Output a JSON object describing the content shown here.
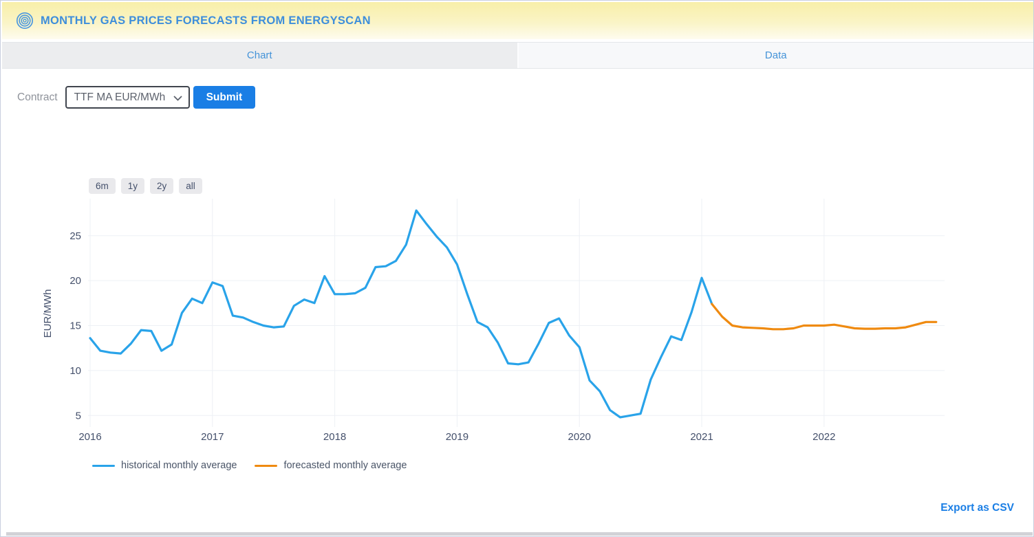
{
  "header": {
    "title": "MONTHLY GAS PRICES FORECASTS FROM ENERGYSCAN"
  },
  "tabs": [
    {
      "label": "Chart",
      "active": true
    },
    {
      "label": "Data",
      "active": false
    }
  ],
  "controls": {
    "contract_label": "Contract",
    "contract_value": "TTF MA EUR/MWh",
    "submit_label": "Submit"
  },
  "range_buttons": [
    "6m",
    "1y",
    "2y",
    "all"
  ],
  "chart_data": {
    "type": "line",
    "ylabel": "EUR/MWh",
    "y_ticks": [
      5,
      10,
      15,
      20,
      25
    ],
    "x_ticks": [
      "2016",
      "2017",
      "2018",
      "2019",
      "2020",
      "2021",
      "2022"
    ],
    "x_unit": "month",
    "x_start": "2016-01",
    "x_end": "2022-12",
    "ylim": [
      3.9,
      29
    ],
    "grid": true,
    "legend_position": "bottom",
    "series": [
      {
        "name": "historical monthly average",
        "color": "#29A3E9",
        "start_index": 0,
        "values": [
          13.6,
          12.2,
          12.0,
          11.9,
          13.0,
          14.5,
          14.4,
          12.2,
          12.9,
          16.4,
          18.0,
          17.5,
          19.8,
          19.4,
          16.1,
          15.9,
          15.4,
          15.0,
          14.8,
          14.9,
          17.2,
          17.9,
          17.5,
          20.5,
          18.5,
          18.5,
          18.6,
          19.2,
          21.5,
          21.6,
          22.2,
          24.0,
          27.8,
          26.3,
          24.9,
          23.7,
          21.8,
          18.5,
          15.4,
          14.8,
          13.1,
          10.8,
          10.7,
          10.9,
          13.0,
          15.3,
          15.8,
          13.9,
          12.6,
          8.9,
          7.7,
          5.6,
          4.8,
          5.0,
          5.2,
          9.0,
          11.5,
          13.8,
          13.4,
          16.5,
          20.3,
          17.4
        ]
      },
      {
        "name": "forecasted monthly average",
        "color": "#EF8A10",
        "start_index": 61,
        "values": [
          17.4,
          16.0,
          15.0,
          14.8,
          14.75,
          14.7,
          14.6,
          14.6,
          14.7,
          15.0,
          15.0,
          15.0,
          15.1,
          14.9,
          14.7,
          14.65,
          14.65,
          14.7,
          14.7,
          14.8,
          15.1,
          15.4,
          15.4
        ]
      }
    ]
  },
  "export_label": "Export as CSV",
  "colors": {
    "accent_blue": "#1A7EE5",
    "title_blue": "#3E8EDB",
    "tab_blue": "#4493D8",
    "historical_line": "#29A3E9",
    "forecast_line": "#EF8A10",
    "grid_line": "#EDF0F5",
    "axis_text": "#44506B",
    "header_yellow_top": "#F8EFA9",
    "header_yellow_bottom": "#FEFCEF"
  }
}
